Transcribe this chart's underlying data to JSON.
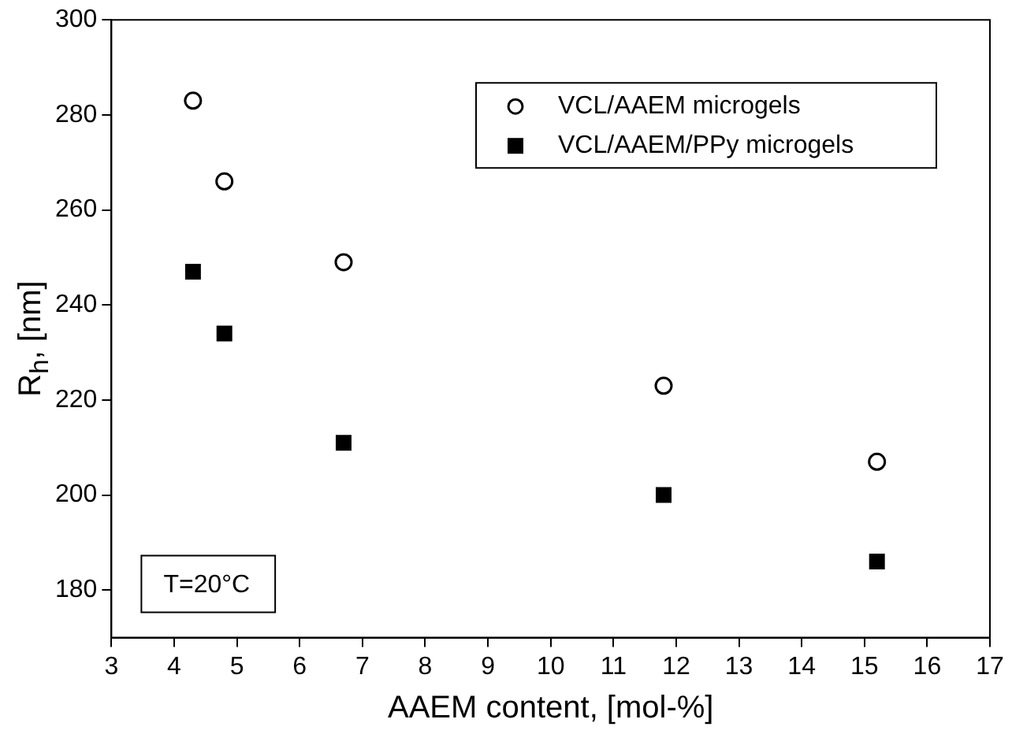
{
  "chart_data": {
    "type": "scatter",
    "xlabel": "AAEM content, [mol-%]",
    "ylabel": "R$_{h}$, [nm]",
    "xlim": [
      3,
      17
    ],
    "xticks": [
      3,
      4,
      5,
      6,
      7,
      8,
      9,
      10,
      11,
      12,
      13,
      14,
      15,
      16,
      17
    ],
    "ylim": [
      170,
      300
    ],
    "yticks": [
      180,
      200,
      220,
      240,
      260,
      280,
      300
    ],
    "grid": false,
    "legend": "top right",
    "annotations": [
      "T=20°C"
    ],
    "series": [
      {
        "name": "VCL/AAEM microgels",
        "color": "#000000",
        "marker": "circle",
        "x": [
          4.3,
          4.8,
          6.7,
          11.8,
          15.2
        ],
        "values": [
          283,
          266,
          249,
          223,
          207
        ]
      },
      {
        "name": "VCL/AAEM/PPy microgels",
        "color": "#000000",
        "marker": "square",
        "x": [
          4.3,
          4.8,
          6.7,
          11.8,
          15.2
        ],
        "values": [
          247,
          234,
          211,
          200,
          186
        ]
      }
    ]
  }
}
